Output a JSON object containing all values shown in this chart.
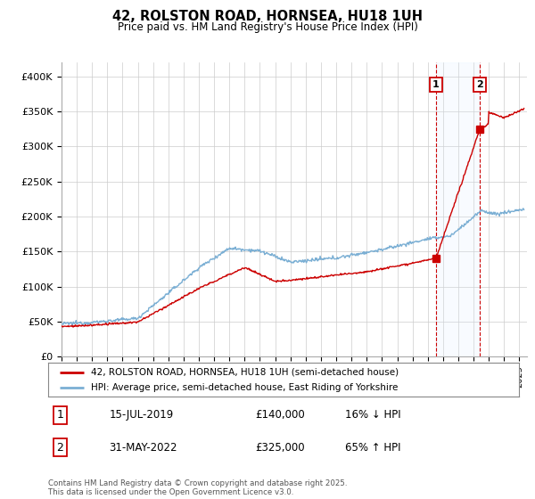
{
  "title": "42, ROLSTON ROAD, HORNSEA, HU18 1UH",
  "subtitle": "Price paid vs. HM Land Registry's House Price Index (HPI)",
  "ylabel_ticks": [
    "£0",
    "£50K",
    "£100K",
    "£150K",
    "£200K",
    "£250K",
    "£300K",
    "£350K",
    "£400K"
  ],
  "ytick_values": [
    0,
    50000,
    100000,
    150000,
    200000,
    250000,
    300000,
    350000,
    400000
  ],
  "ylim": [
    0,
    420000
  ],
  "xlim_start": 1995.0,
  "xlim_end": 2025.5,
  "transaction1": {
    "date": 2019.54,
    "price": 140000,
    "label": "1",
    "note": "15-JUL-2019",
    "amount": "£140,000",
    "hpi_note": "16% ↓ HPI"
  },
  "transaction2": {
    "date": 2022.41,
    "price": 325000,
    "label": "2",
    "note": "31-MAY-2022",
    "amount": "£325,000",
    "hpi_note": "65% ↑ HPI"
  },
  "legend_line1": "42, ROLSTON ROAD, HORNSEA, HU18 1UH (semi-detached house)",
  "legend_line2": "HPI: Average price, semi-detached house, East Riding of Yorkshire",
  "footer": "Contains HM Land Registry data © Crown copyright and database right 2025.\nThis data is licensed under the Open Government Licence v3.0.",
  "line_color_red": "#cc0000",
  "line_color_blue": "#7bafd4",
  "background_color": "#ffffff",
  "plot_bg_color": "#ffffff",
  "grid_color": "#cccccc",
  "annotation_box_color": "#cc0000",
  "shade_color": "#ddeeff"
}
